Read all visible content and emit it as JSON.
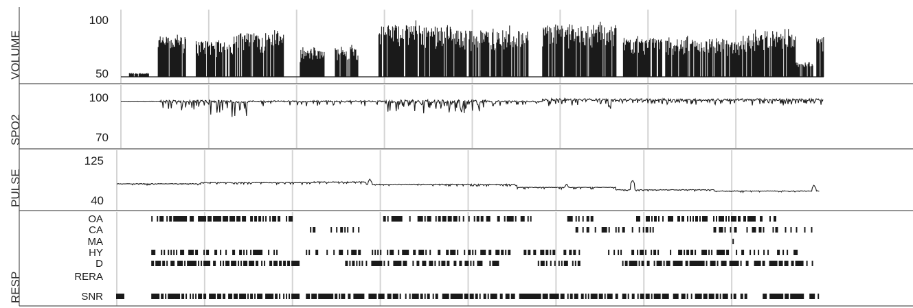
{
  "chart_data": {
    "type": "line",
    "x_range": [
      0,
      1
    ],
    "grid": "vertical",
    "colors": {
      "trace": "#1a1a1a",
      "grid": "#d4d4d4",
      "axis": "#555555"
    },
    "panels": [
      {
        "label": "VOLUME",
        "ticks": {
          "top": "100",
          "bottom": "50"
        },
        "ylim": [
          48,
          100
        ],
        "segments": [
          {
            "x": [
              0.0,
              0.012
            ],
            "low": 50,
            "high": 50,
            "jitter": 0
          },
          {
            "x": [
              0.012,
              0.04
            ],
            "low": 51,
            "high": 53,
            "jitter": 0.3
          },
          {
            "x": [
              0.053,
              0.093
            ],
            "low": 50,
            "high": 83,
            "jitter": 0.8
          },
          {
            "x": [
              0.107,
              0.16
            ],
            "low": 50,
            "high": 80,
            "jitter": 0.8
          },
          {
            "x": [
              0.16,
              0.232
            ],
            "low": 50,
            "high": 86,
            "jitter": 0.9
          },
          {
            "x": [
              0.255,
              0.29
            ],
            "low": 50,
            "high": 72,
            "jitter": 0.8
          },
          {
            "x": [
              0.305,
              0.34
            ],
            "low": 50,
            "high": 74,
            "jitter": 0.8
          },
          {
            "x": [
              0.365,
              0.47
            ],
            "low": 52,
            "high": 92,
            "jitter": 0.7
          },
          {
            "x": [
              0.47,
              0.58
            ],
            "low": 52,
            "high": 88,
            "jitter": 0.6
          },
          {
            "x": [
              0.6,
              0.705
            ],
            "low": 50,
            "high": 93,
            "jitter": 0.8
          },
          {
            "x": [
              0.715,
              0.77
            ],
            "low": 50,
            "high": 82,
            "jitter": 0.9
          },
          {
            "x": [
              0.775,
              0.9
            ],
            "low": 53,
            "high": 80,
            "jitter": 0.6
          },
          {
            "x": [
              0.9,
              0.96
            ],
            "low": 50,
            "high": 85,
            "jitter": 0.9
          },
          {
            "x": [
              0.96,
              0.985
            ],
            "low": 50,
            "high": 62,
            "jitter": 0.7
          },
          {
            "x": [
              0.99,
              1.0
            ],
            "low": 50,
            "high": 82,
            "jitter": 0.5
          }
        ]
      },
      {
        "label": "SPO2",
        "ticks": {
          "top": "100",
          "bottom": "70"
        },
        "ylim": [
          68,
          102
        ],
        "segments": [
          {
            "x": [
              0.0,
              0.055
            ],
            "base": 95,
            "dip": 2,
            "jitter": 0.1
          },
          {
            "x": [
              0.055,
              0.12
            ],
            "base": 95,
            "dip": 5,
            "jitter": 0.7
          },
          {
            "x": [
              0.12,
              0.18
            ],
            "base": 95,
            "dip": 9,
            "jitter": 0.8
          },
          {
            "x": [
              0.18,
              0.38
            ],
            "base": 95,
            "dip": 3,
            "jitter": 0.4
          },
          {
            "x": [
              0.38,
              0.52
            ],
            "base": 95,
            "dip": 7,
            "jitter": 0.9
          },
          {
            "x": [
              0.52,
              0.6
            ],
            "base": 95,
            "dip": 3,
            "jitter": 0.4
          },
          {
            "x": [
              0.6,
              0.7
            ],
            "base": 96,
            "dip": 5,
            "jitter": 0.6
          },
          {
            "x": [
              0.7,
              1.0
            ],
            "base": 96,
            "dip": 3,
            "jitter": 0.6
          }
        ]
      },
      {
        "label": "PULSE",
        "ticks": {
          "top": "125",
          "bottom": "40"
        },
        "ylim": [
          38,
          128
        ],
        "segments": [
          {
            "x": [
              0.0,
              0.12
            ],
            "base": 78,
            "dip": 2,
            "jitter": 0.4
          },
          {
            "x": [
              0.12,
              0.28
            ],
            "base": 80,
            "dip": 3,
            "jitter": 0.5
          },
          {
            "x": [
              0.28,
              0.355
            ],
            "base": 81,
            "dip": 3,
            "jitter": 0.5
          },
          {
            "x": [
              0.355,
              0.57
            ],
            "base": 77,
            "dip": 3,
            "jitter": 0.5
          },
          {
            "x": [
              0.57,
              0.71
            ],
            "base": 72,
            "dip": 3,
            "jitter": 0.4
          },
          {
            "x": [
              0.71,
              0.85
            ],
            "base": 68,
            "dip": 2,
            "jitter": 0.4
          },
          {
            "x": [
              0.85,
              1.0
            ],
            "base": 66,
            "dip": 2,
            "jitter": 0.4
          }
        ],
        "peaks": [
          [
            0.36,
            86
          ],
          [
            0.64,
            78
          ],
          [
            0.734,
            84
          ],
          [
            0.992,
            76
          ]
        ]
      },
      {
        "label": "RESP",
        "rows": [
          {
            "name": "OA",
            "density": 0.55,
            "spans": [
              [
                0.05,
                0.25
              ],
              [
                0.38,
                0.59
              ],
              [
                0.64,
                0.68
              ],
              [
                0.74,
                0.94
              ]
            ]
          },
          {
            "name": "CA",
            "density": 0.4,
            "spans": [
              [
                0.27,
                0.35
              ],
              [
                0.64,
                0.77
              ],
              [
                0.85,
                0.99
              ]
            ]
          },
          {
            "name": "MA",
            "density": 0.6,
            "spans": [
              [
                0.877,
                0.88
              ]
            ]
          },
          {
            "name": "HY",
            "density": 0.45,
            "spans": [
              [
                0.05,
                0.23
              ],
              [
                0.27,
                0.56
              ],
              [
                0.58,
                0.66
              ],
              [
                0.7,
                0.97
              ]
            ]
          },
          {
            "name": "D",
            "density": 0.6,
            "spans": [
              [
                0.05,
                0.26
              ],
              [
                0.32,
                0.55
              ],
              [
                0.6,
                0.66
              ],
              [
                0.72,
                0.99
              ]
            ]
          },
          {
            "name": "RERA",
            "density": 0,
            "spans": []
          },
          {
            "name": "SNR",
            "density": 0.7,
            "spans": [
              [
                0.0,
                0.01
              ],
              [
                0.05,
                0.26
              ],
              [
                0.27,
                0.32
              ],
              [
                0.32,
                0.38
              ],
              [
                0.38,
                0.9
              ],
              [
                0.92,
                1.0
              ]
            ]
          }
        ]
      }
    ]
  }
}
